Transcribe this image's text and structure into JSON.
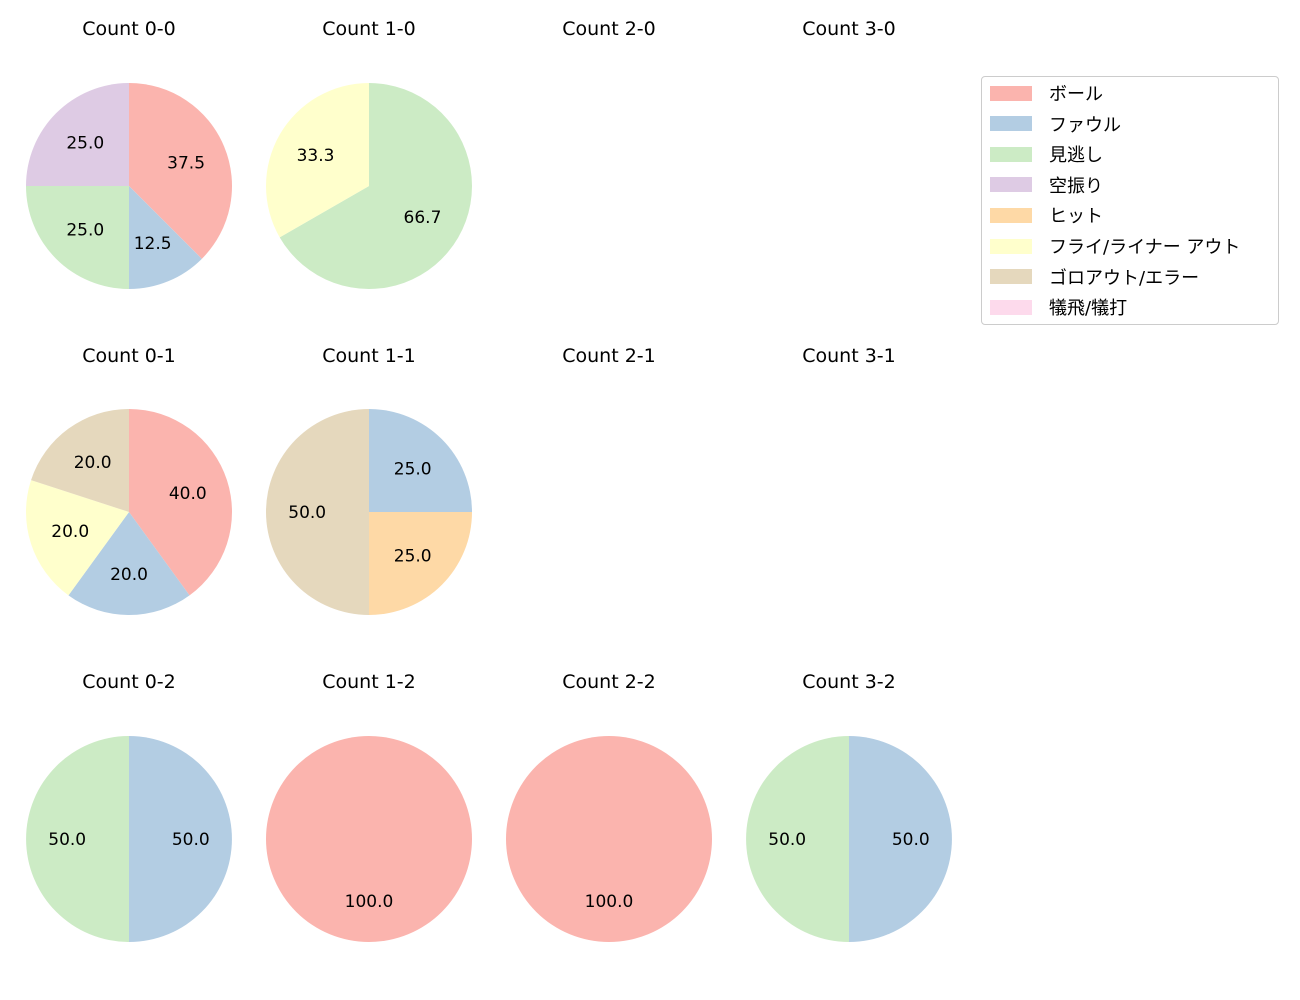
{
  "chart_data": {
    "type": "pie",
    "legend": {
      "position": "upper right",
      "entries": [
        {
          "label": "ボール",
          "color": "#fbb4ae"
        },
        {
          "label": "ファウル",
          "color": "#b3cde3"
        },
        {
          "label": "見逃し",
          "color": "#ccebc5"
        },
        {
          "label": "空振り",
          "color": "#decbe4"
        },
        {
          "label": "ヒット",
          "color": "#fed9a6"
        },
        {
          "label": "フライ/ライナー アウト",
          "color": "#ffffcc"
        },
        {
          "label": "ゴロアウト/エラー",
          "color": "#e5d8bd"
        },
        {
          "label": "犠飛/犠打",
          "color": "#fddaec"
        }
      ]
    },
    "charts": [
      {
        "title": "Count 0-0",
        "row": 0,
        "col": 0,
        "slices": [
          {
            "label": "ボール",
            "value": 37.5
          },
          {
            "label": "ファウル",
            "value": 12.5
          },
          {
            "label": "見逃し",
            "value": 25.0
          },
          {
            "label": "空振り",
            "value": 25.0
          }
        ]
      },
      {
        "title": "Count 1-0",
        "row": 0,
        "col": 1,
        "slices": [
          {
            "label": "見逃し",
            "value": 66.7
          },
          {
            "label": "フライ/ライナー アウト",
            "value": 33.3
          }
        ]
      },
      {
        "title": "Count 2-0",
        "row": 0,
        "col": 2,
        "slices": []
      },
      {
        "title": "Count 3-0",
        "row": 0,
        "col": 3,
        "slices": []
      },
      {
        "title": "Count 0-1",
        "row": 1,
        "col": 0,
        "slices": [
          {
            "label": "ボール",
            "value": 40.0
          },
          {
            "label": "ファウル",
            "value": 20.0
          },
          {
            "label": "フライ/ライナー アウト",
            "value": 20.0
          },
          {
            "label": "ゴロアウト/エラー",
            "value": 20.0
          }
        ]
      },
      {
        "title": "Count 1-1",
        "row": 1,
        "col": 1,
        "slices": [
          {
            "label": "ファウル",
            "value": 25.0
          },
          {
            "label": "ヒット",
            "value": 25.0
          },
          {
            "label": "ゴロアウト/エラー",
            "value": 50.0
          }
        ]
      },
      {
        "title": "Count 2-1",
        "row": 1,
        "col": 2,
        "slices": []
      },
      {
        "title": "Count 3-1",
        "row": 1,
        "col": 3,
        "slices": []
      },
      {
        "title": "Count 0-2",
        "row": 2,
        "col": 0,
        "slices": [
          {
            "label": "ファウル",
            "value": 50.0
          },
          {
            "label": "見逃し",
            "value": 50.0
          }
        ]
      },
      {
        "title": "Count 1-2",
        "row": 2,
        "col": 1,
        "slices": [
          {
            "label": "ボール",
            "value": 100.0
          }
        ]
      },
      {
        "title": "Count 2-2",
        "row": 2,
        "col": 2,
        "slices": [
          {
            "label": "ボール",
            "value": 100.0
          }
        ]
      },
      {
        "title": "Count 3-2",
        "row": 2,
        "col": 3,
        "slices": [
          {
            "label": "ファウル",
            "value": 50.0
          },
          {
            "label": "見逃し",
            "value": 50.0
          }
        ]
      }
    ]
  }
}
